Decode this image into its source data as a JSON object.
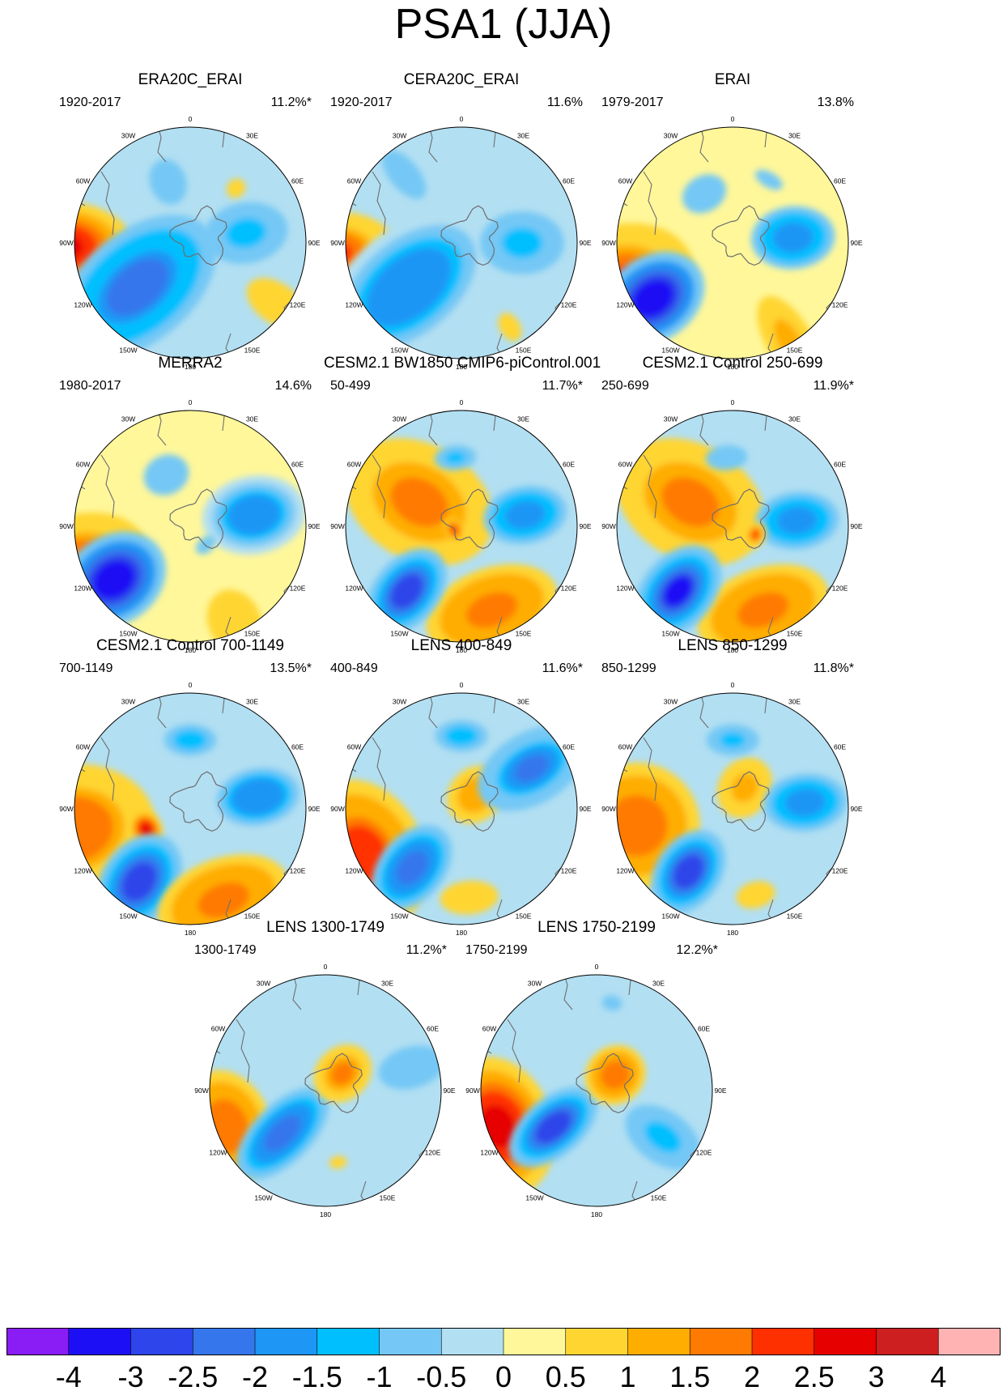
{
  "title": "PSA1 (JJA)",
  "panels": [
    {
      "id": "p1",
      "title": "ERA20C_ERAI",
      "period": "1920-2017",
      "pct": "11.2%*"
    },
    {
      "id": "p2",
      "title": "CERA20C_ERAI",
      "period": "1920-2017",
      "pct": "11.6%"
    },
    {
      "id": "p3",
      "title": "ERAI",
      "period": "1979-2017",
      "pct": "13.8%"
    },
    {
      "id": "p4",
      "title": "MERRA2",
      "period": "1980-2017",
      "pct": "14.6%"
    },
    {
      "id": "p5",
      "title": "CESM2.1 BW1850 CMIP6-piControl.001",
      "period": "50-499",
      "pct": "11.7%*"
    },
    {
      "id": "p6",
      "title": "CESM2.1 Control 250-699",
      "period": "250-699",
      "pct": "11.9%*"
    },
    {
      "id": "p7",
      "title": "CESM2.1 Control 700-1149",
      "period": "700-1149",
      "pct": "13.5%*"
    },
    {
      "id": "p8",
      "title": "LENS 400-849",
      "period": "400-849",
      "pct": "11.6%*"
    },
    {
      "id": "p9",
      "title": "LENS 850-1299",
      "period": "850-1299",
      "pct": "11.8%*"
    },
    {
      "id": "p10",
      "title": "LENS 1300-1749",
      "period": "1300-1749",
      "pct": "11.2%*"
    },
    {
      "id": "p11",
      "title": "LENS 1750-2199",
      "period": "1750-2199",
      "pct": "12.2%*"
    }
  ],
  "lon_labels": [
    "0",
    "30E",
    "60E",
    "90E",
    "120E",
    "150E",
    "180",
    "150W",
    "120W",
    "90W",
    "60W",
    "30W"
  ],
  "colorbar": {
    "ticks": [
      "-4",
      "-3",
      "-2.5",
      "-2",
      "-1.5",
      "-1",
      "-0.5",
      "0",
      "0.5",
      "1",
      "1.5",
      "2",
      "2.5",
      "3",
      "4"
    ],
    "colors": [
      "#8a1cf5",
      "#1d0ff5",
      "#2d45ea",
      "#3676ec",
      "#1d96f5",
      "#00bfff",
      "#75c8f5",
      "#b2dff2",
      "#fff79a",
      "#ffd532",
      "#ffad00",
      "#ff7a00",
      "#ff3000",
      "#e60000",
      "#cd1f1f",
      "#ffb3b3"
    ]
  },
  "patterns": {
    "p1": {
      "bg": "#b2dff2",
      "blobs": [
        [
          "h",
          -92,
          160,
          70,
          110,
          2.7
        ],
        [
          "l",
          -130,
          85,
          85,
          140,
          -2.4
        ],
        [
          "l",
          80,
          70,
          58,
          80,
          -1.2
        ],
        [
          "h",
          125,
          130,
          48,
          80,
          1.0
        ],
        [
          "l",
          -20,
          80,
          55,
          70,
          -0.8
        ],
        [
          "h",
          40,
          88,
          35,
          40,
          0.6
        ]
      ]
    },
    "p2": {
      "bg": "#b2dff2",
      "blobs": [
        [
          "h",
          -95,
          160,
          65,
          100,
          2.2
        ],
        [
          "l",
          -130,
          85,
          90,
          150,
          -2.0
        ],
        [
          "l",
          90,
          75,
          60,
          80,
          -1.2
        ],
        [
          "l",
          -40,
          110,
          35,
          70,
          -1.0
        ],
        [
          "h",
          150,
          120,
          40,
          60,
          0.6
        ],
        [
          "h",
          30,
          80,
          30,
          20,
          0.5
        ]
      ]
    },
    "p3": {
      "bg": "#fff79a",
      "blobs": [
        [
          "h",
          -110,
          150,
          90,
          120,
          2.2
        ],
        [
          "l",
          -125,
          120,
          65,
          85,
          -3.8
        ],
        [
          "l",
          -30,
          70,
          70,
          55,
          -0.8
        ],
        [
          "l",
          85,
          75,
          60,
          80,
          -1.8
        ],
        [
          "h",
          150,
          140,
          55,
          120,
          1.1
        ],
        [
          "l",
          30,
          90,
          60,
          30,
          -0.6
        ]
      ]
    },
    "p4": {
      "bg": "#fff79a",
      "blobs": [
        [
          "h",
          -110,
          150,
          80,
          115,
          2.0
        ],
        [
          "l",
          -125,
          115,
          68,
          85,
          -3.6
        ],
        [
          "l",
          -25,
          70,
          70,
          60,
          -0.8
        ],
        [
          "l",
          80,
          80,
          60,
          80,
          -2.0
        ],
        [
          "h",
          155,
          130,
          80,
          100,
          0.8
        ],
        [
          "l",
          140,
          30,
          45,
          30,
          -0.6
        ]
      ]
    },
    "p5": {
      "bg": "#b2dff2",
      "blobs": [
        [
          "h",
          -60,
          60,
          110,
          150,
          1.6
        ],
        [
          "h",
          160,
          110,
          130,
          80,
          1.7
        ],
        [
          "l",
          -140,
          105,
          50,
          75,
          -3.0
        ],
        [
          "l",
          80,
          80,
          55,
          80,
          -1.9
        ],
        [
          "l",
          -5,
          85,
          50,
          30,
          -1.1
        ],
        [
          "h",
          -115,
          10,
          20,
          14,
          2.3
        ]
      ]
    },
    "p6": {
      "bg": "#b2dff2",
      "blobs": [
        [
          "h",
          -60,
          60,
          110,
          150,
          1.6
        ],
        [
          "h",
          160,
          110,
          130,
          80,
          1.7
        ],
        [
          "l",
          -140,
          105,
          55,
          80,
          -3.2
        ],
        [
          "l",
          85,
          80,
          55,
          80,
          -1.8
        ],
        [
          "l",
          -5,
          85,
          50,
          30,
          -1.0
        ],
        [
          "h",
          110,
          30,
          20,
          16,
          2.1
        ]
      ]
    },
    "p7": {
      "bg": "#b2dff2",
      "blobs": [
        [
          "h",
          -100,
          150,
          100,
          130,
          2.0
        ],
        [
          "h",
          -115,
          60,
          30,
          25,
          2.8
        ],
        [
          "l",
          -145,
          110,
          58,
          80,
          -3.1
        ],
        [
          "h",
          160,
          120,
          130,
          80,
          1.7
        ],
        [
          "l",
          80,
          85,
          55,
          80,
          -2.0
        ],
        [
          "l",
          0,
          85,
          50,
          30,
          -1.5
        ]
      ]
    },
    "p8": {
      "bg": "#b2dff2",
      "blobs": [
        [
          "h",
          -115,
          135,
          120,
          95,
          2.3
        ],
        [
          "l",
          -140,
          95,
          50,
          75,
          -2.5
        ],
        [
          "h",
          45,
          25,
          50,
          60,
          1.5
        ],
        [
          "l",
          60,
          100,
          55,
          90,
          -2.1
        ],
        [
          "l",
          0,
          90,
          50,
          30,
          -1.5
        ],
        [
          "h",
          175,
          110,
          70,
          40,
          1.0
        ]
      ]
    },
    "p9": {
      "bg": "#b2dff2",
      "blobs": [
        [
          "h",
          -100,
          120,
          120,
          120,
          1.8
        ],
        [
          "l",
          -145,
          95,
          50,
          70,
          -3.1
        ],
        [
          "h",
          30,
          30,
          50,
          60,
          1.3
        ],
        [
          "l",
          85,
          90,
          55,
          80,
          -1.9
        ],
        [
          "l",
          0,
          85,
          50,
          30,
          -1.2
        ],
        [
          "h",
          165,
          110,
          60,
          40,
          0.8
        ]
      ]
    },
    "p10": {
      "bg": "#b2dff2",
      "blobs": [
        [
          "h",
          -110,
          130,
          110,
          85,
          1.9
        ],
        [
          "l",
          -135,
          75,
          45,
          90,
          -2.6
        ],
        [
          "h",
          45,
          30,
          50,
          60,
          1.6
        ],
        [
          "l",
          75,
          110,
          50,
          80,
          -1.0
        ],
        [
          "h",
          -50,
          120,
          40,
          60,
          0.5
        ],
        [
          "h",
          170,
          90,
          35,
          25,
          0.6
        ]
      ]
    },
    "p11": {
      "bg": "#b2dff2",
      "blobs": [
        [
          "h",
          -110,
          130,
          110,
          85,
          2.8
        ],
        [
          "l",
          -130,
          70,
          45,
          80,
          -2.9
        ],
        [
          "h",
          50,
          30,
          55,
          60,
          1.8
        ],
        [
          "l",
          125,
          100,
          50,
          80,
          -1.3
        ],
        [
          "h",
          -40,
          120,
          40,
          60,
          0.5
        ],
        [
          "l",
          10,
          110,
          40,
          30,
          -0.6
        ]
      ]
    }
  }
}
